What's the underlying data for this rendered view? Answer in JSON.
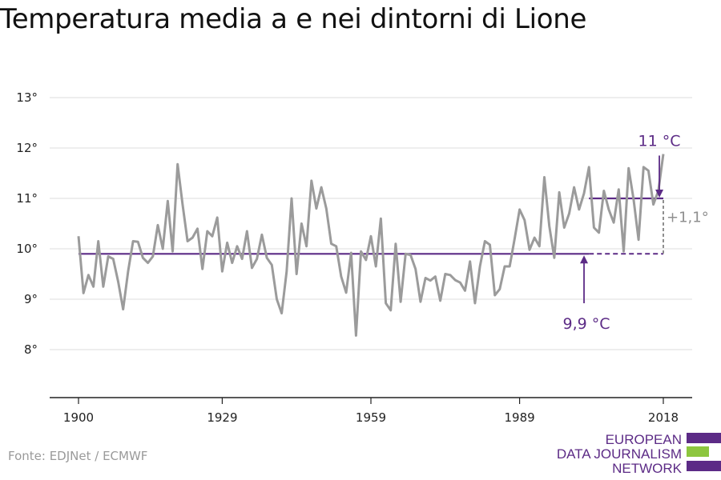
{
  "title": "Temperatura media a e nei dintorni di Lione",
  "source": "Fonte: EDJNet / ECMWF",
  "logo": {
    "lines": [
      "EUROPEAN",
      "DATA JOURNALISM",
      "NETWORK"
    ],
    "colors": {
      "purple": "#5c2b86",
      "green": "#8dc63f"
    }
  },
  "colors": {
    "series": "#9b9b9b",
    "annotation": "#5c2b86",
    "delta": "#8f8f8f",
    "grid": "#dddddd",
    "axis": "#222222"
  },
  "chart_data": {
    "type": "line",
    "title": "Temperatura media a e nei dintorni di Lione",
    "xlabel": "",
    "ylabel": "",
    "xlim": [
      1900,
      2018
    ],
    "ylim": [
      7,
      13
    ],
    "grid": true,
    "x_ticks": [
      1900,
      1929,
      1959,
      1989,
      2018
    ],
    "x_tick_labels": [
      "1900",
      "1929",
      "1959",
      "1989",
      "2018"
    ],
    "y_ticks": [
      8,
      9,
      10,
      11,
      12,
      13
    ],
    "y_tick_labels": [
      "8°",
      "9°",
      "10°",
      "11°",
      "12°",
      "13°"
    ],
    "x": [
      1900,
      1901,
      1902,
      1903,
      1904,
      1905,
      1906,
      1907,
      1908,
      1909,
      1910,
      1911,
      1912,
      1913,
      1914,
      1915,
      1916,
      1917,
      1918,
      1919,
      1920,
      1921,
      1922,
      1923,
      1924,
      1925,
      1926,
      1927,
      1928,
      1929,
      1930,
      1931,
      1932,
      1933,
      1934,
      1935,
      1936,
      1937,
      1938,
      1939,
      1940,
      1941,
      1942,
      1943,
      1944,
      1945,
      1946,
      1947,
      1948,
      1949,
      1950,
      1951,
      1952,
      1953,
      1954,
      1955,
      1956,
      1957,
      1958,
      1959,
      1960,
      1961,
      1962,
      1963,
      1964,
      1965,
      1966,
      1967,
      1968,
      1969,
      1970,
      1971,
      1972,
      1973,
      1974,
      1975,
      1976,
      1977,
      1978,
      1979,
      1980,
      1981,
      1982,
      1983,
      1984,
      1985,
      1986,
      1987,
      1988,
      1989,
      1990,
      1991,
      1992,
      1993,
      1994,
      1995,
      1996,
      1997,
      1998,
      1999,
      2000,
      2001,
      2002,
      2003,
      2004,
      2005,
      2006,
      2007,
      2008,
      2009,
      2010,
      2011,
      2012,
      2013,
      2014,
      2015,
      2016,
      2017,
      2018
    ],
    "y": [
      10.25,
      9.12,
      9.48,
      9.25,
      10.15,
      9.25,
      9.85,
      9.8,
      9.35,
      8.8,
      9.55,
      10.15,
      10.14,
      9.82,
      9.72,
      9.85,
      10.47,
      10.0,
      10.95,
      9.95,
      11.68,
      10.88,
      10.15,
      10.22,
      10.4,
      9.6,
      10.35,
      10.25,
      10.62,
      9.55,
      10.12,
      9.72,
      10.05,
      9.8,
      10.35,
      9.62,
      9.8,
      10.28,
      9.82,
      9.68,
      9.0,
      8.72,
      9.55,
      11.0,
      9.5,
      10.5,
      10.05,
      11.35,
      10.8,
      11.22,
      10.8,
      10.1,
      10.05,
      9.45,
      9.13,
      9.92,
      8.28,
      9.95,
      9.78,
      10.25,
      9.65,
      10.6,
      8.92,
      8.78,
      10.1,
      8.95,
      9.9,
      9.88,
      9.6,
      8.95,
      9.42,
      9.37,
      9.45,
      8.97,
      9.5,
      9.48,
      9.38,
      9.33,
      9.17,
      9.75,
      8.92,
      9.65,
      10.15,
      10.08,
      9.08,
      9.2,
      9.65,
      9.65,
      10.2,
      10.78,
      10.57,
      9.98,
      10.22,
      10.05,
      11.42,
      10.45,
      9.82,
      11.12,
      10.42,
      10.7,
      11.22,
      10.78,
      11.1,
      11.62,
      10.42,
      10.32,
      11.15,
      10.78,
      10.52,
      11.18,
      9.95,
      11.6,
      10.98,
      10.18,
      11.62,
      11.55,
      10.88,
      11.15,
      11.88
    ],
    "reference_lines": [
      {
        "label": "9,9 °C",
        "value": 9.9,
        "x_start": 1900,
        "x_solid_end": 2003,
        "x_end": 2018
      },
      {
        "label": "11 °C",
        "value": 11.0,
        "x_start": 2003,
        "x_end": 2018
      }
    ],
    "delta_label": "+1,1°"
  }
}
